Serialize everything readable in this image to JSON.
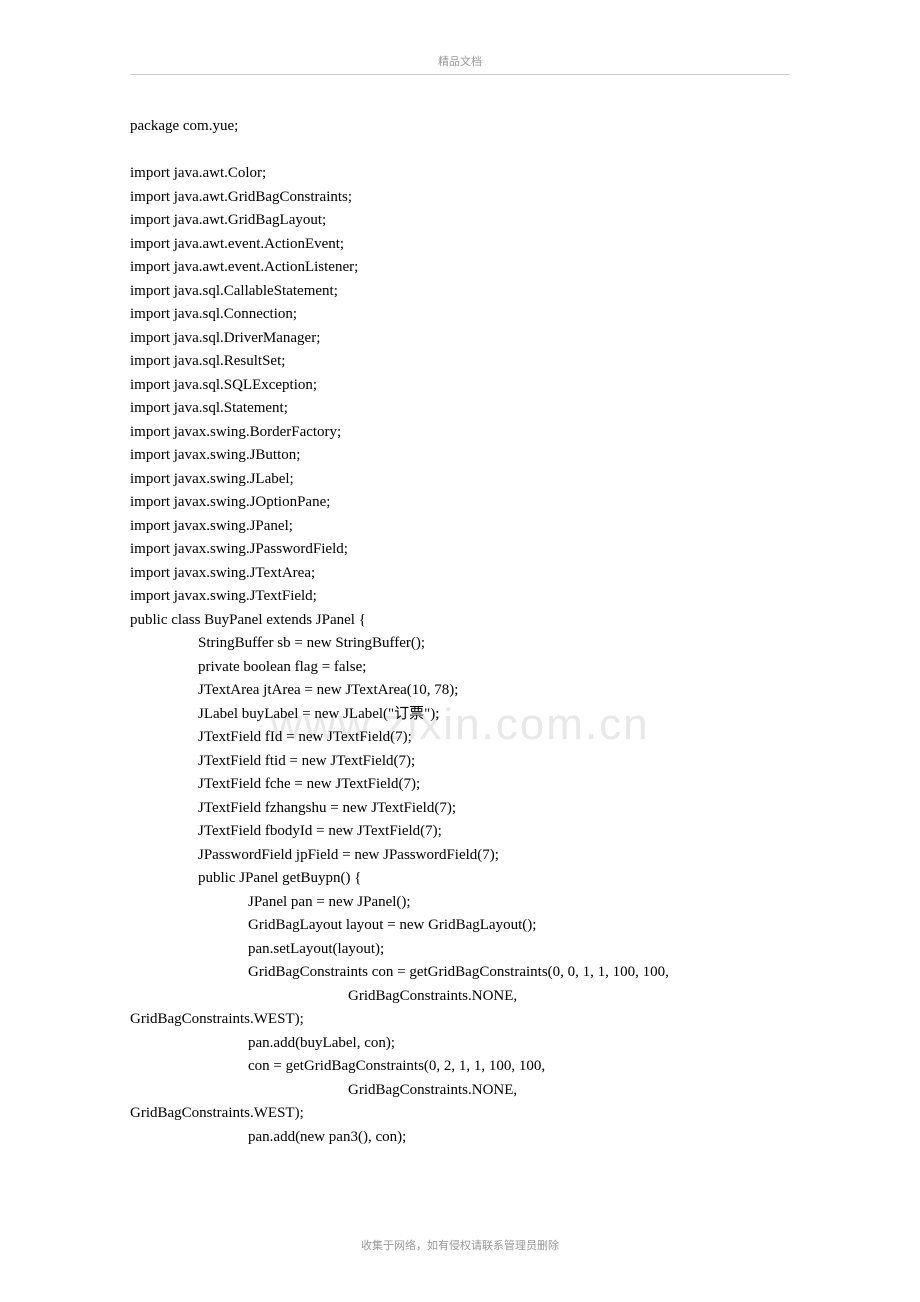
{
  "header": {
    "text": "精品文档"
  },
  "watermark": {
    "text": "www.zixin.com.cn"
  },
  "code": {
    "lines": [
      {
        "text": "package com.yue;",
        "indent": 0,
        "blank_after": true
      },
      {
        "text": "import java.awt.Color;",
        "indent": 0
      },
      {
        "text": "import java.awt.GridBagConstraints;",
        "indent": 0
      },
      {
        "text": "import java.awt.GridBagLayout;",
        "indent": 0
      },
      {
        "text": "import java.awt.event.ActionEvent;",
        "indent": 0
      },
      {
        "text": "import java.awt.event.ActionListener;",
        "indent": 0
      },
      {
        "text": "import java.sql.CallableStatement;",
        "indent": 0
      },
      {
        "text": "import java.sql.Connection;",
        "indent": 0
      },
      {
        "text": "import java.sql.DriverManager;",
        "indent": 0
      },
      {
        "text": "import java.sql.ResultSet;",
        "indent": 0
      },
      {
        "text": "import java.sql.SQLException;",
        "indent": 0
      },
      {
        "text": "import java.sql.Statement;",
        "indent": 0
      },
      {
        "text": "import javax.swing.BorderFactory;",
        "indent": 0
      },
      {
        "text": "import javax.swing.JButton;",
        "indent": 0
      },
      {
        "text": "import javax.swing.JLabel;",
        "indent": 0
      },
      {
        "text": "import javax.swing.JOptionPane;",
        "indent": 0
      },
      {
        "text": "import javax.swing.JPanel;",
        "indent": 0
      },
      {
        "text": "import javax.swing.JPasswordField;",
        "indent": 0
      },
      {
        "text": "import javax.swing.JTextArea;",
        "indent": 0
      },
      {
        "text": "import javax.swing.JTextField;",
        "indent": 0
      },
      {
        "text": "public class BuyPanel extends JPanel {",
        "indent": 0
      },
      {
        "text": "StringBuffer sb = new StringBuffer();",
        "indent": 1
      },
      {
        "text": "private boolean flag = false;",
        "indent": 1
      },
      {
        "text": "JTextArea jtArea = new JTextArea(10, 78);",
        "indent": 1
      },
      {
        "text": "JLabel buyLabel = new JLabel(\"订票\");",
        "indent": 1
      },
      {
        "text": "JTextField fId = new JTextField(7);",
        "indent": 1
      },
      {
        "text": "JTextField ftid = new JTextField(7);",
        "indent": 1
      },
      {
        "text": "JTextField fche = new JTextField(7);",
        "indent": 1
      },
      {
        "text": "JTextField fzhangshu = new JTextField(7);",
        "indent": 1
      },
      {
        "text": "JTextField fbodyId = new JTextField(7);",
        "indent": 1
      },
      {
        "text": "JPasswordField jpField = new JPasswordField(7);",
        "indent": 1
      },
      {
        "text": "public JPanel getBuypn() {",
        "indent": 1
      },
      {
        "text": "JPanel pan = new JPanel();",
        "indent": 2
      },
      {
        "text": "GridBagLayout layout = new GridBagLayout();",
        "indent": 2
      },
      {
        "text": "pan.setLayout(layout);",
        "indent": 2
      },
      {
        "text": "GridBagConstraints con = getGridBagConstraints(0, 0, 1, 1, 100, 100,",
        "indent": 2
      },
      {
        "text": "GridBagConstraints.NONE,",
        "indent": 3
      },
      {
        "text": "GridBagConstraints.WEST);",
        "indent": 0
      },
      {
        "text": "pan.add(buyLabel, con);",
        "indent": 2
      },
      {
        "text": "con = getGridBagConstraints(0, 2, 1, 1, 100, 100,",
        "indent": 2
      },
      {
        "text": "GridBagConstraints.NONE,",
        "indent": 3
      },
      {
        "text": "GridBagConstraints.WEST);",
        "indent": 0
      },
      {
        "text": "pan.add(new pan3(), con);",
        "indent": 2
      }
    ]
  },
  "footer": {
    "text": "收集于网络，如有侵权请联系管理员删除"
  }
}
